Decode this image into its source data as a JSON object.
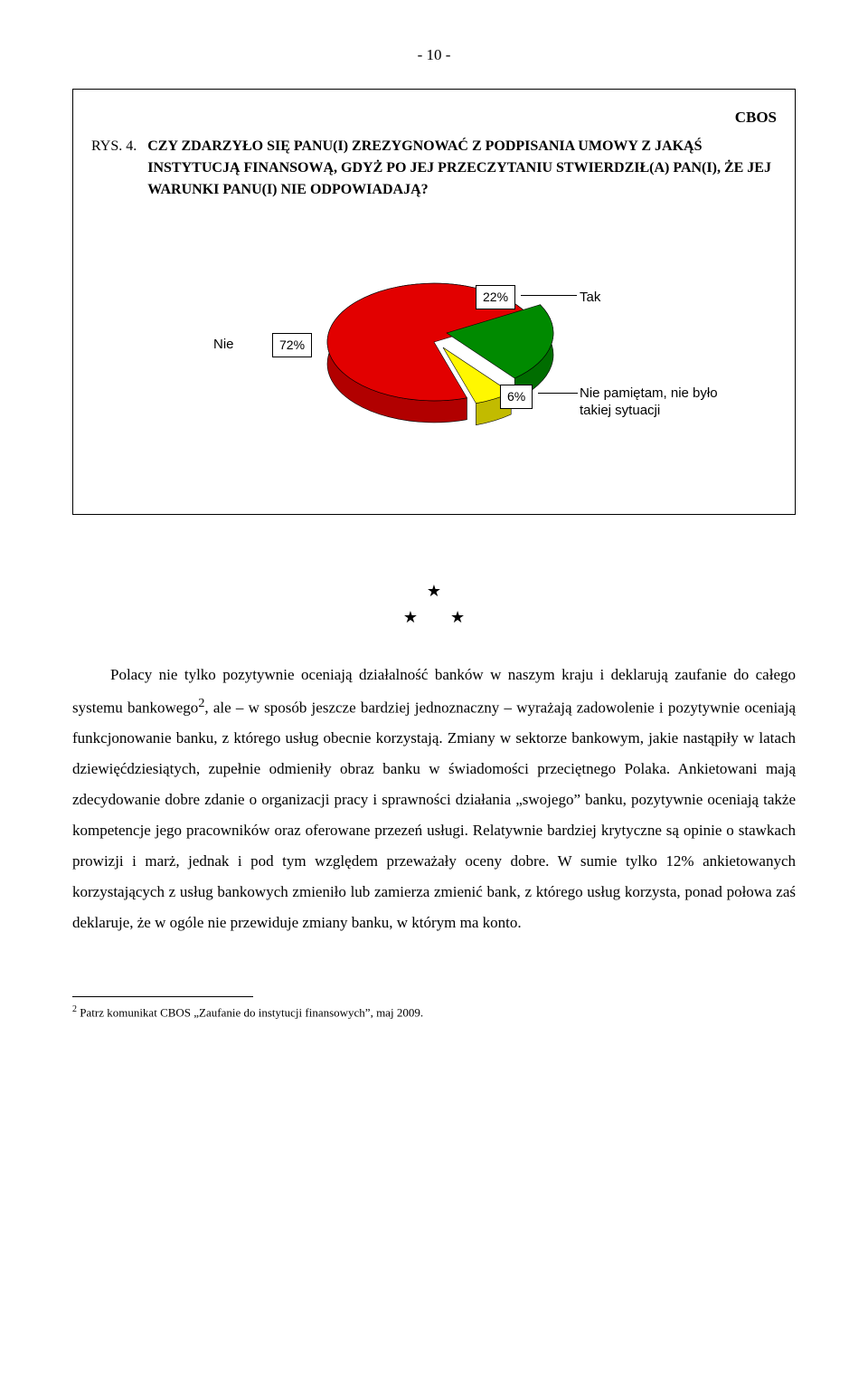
{
  "page_number": "- 10 -",
  "frame": {
    "cbos": "CBOS",
    "rys_label": "RYS. 4.",
    "rys_question": "CZY ZDARZYŁO SIĘ PANU(I) ZREZYGNOWAĆ Z PODPISANIA UMOWY Z JAKĄŚ INSTYTUCJĄ FINANSOWĄ, GDYŻ PO JEJ PRZECZYTANIU STWIERDZIŁ(A) PAN(I), ŻE JEJ WARUNKI PANU(I) NIE ODPOWIADAJĄ?"
  },
  "pie_chart": {
    "type": "pie",
    "slices": [
      {
        "label": "Nie",
        "value": 72,
        "pct_text": "72%",
        "color": "#e20000",
        "side_color": "#b10000"
      },
      {
        "label": "Tak",
        "value": 22,
        "pct_text": "22%",
        "color": "#008a00",
        "side_color": "#006d00"
      },
      {
        "label": "Nie pamiętam, nie było takiej sytuacji",
        "value": 6,
        "pct_text": "6%",
        "color": "#fff700",
        "side_color": "#c2bb00"
      }
    ],
    "background_color": "#ffffff",
    "border_color": "#000000",
    "label_font_family": "Arial",
    "label_font_size": 15,
    "pct_box_bg": "#ffffff",
    "pct_box_border": "#000000",
    "radius": 118,
    "depth": 24
  },
  "stars": "★\n★        ★",
  "paragraph_before_sup": "Polacy nie tylko pozytywnie oceniają działalność banków w naszym kraju i deklarują zaufanie do całego systemu bankowego",
  "sup_marker": "2",
  "paragraph_after_sup": ", ale – w sposób jeszcze bardziej jednoznaczny – wyrażają zadowolenie i pozytywnie oceniają funkcjonowanie banku, z którego usług obecnie korzystają. Zmiany w sektorze bankowym, jakie nastąpiły w latach dziewięćdziesiątych, zupełnie odmieniły obraz banku w świadomości przeciętnego Polaka. Ankietowani mają zdecydowanie dobre zdanie o organizacji pracy i sprawności działania „swojego” banku, pozytywnie oceniają także kompetencje jego pracowników oraz oferowane przezeń usługi. Relatywnie bardziej krytyczne są opinie o stawkach prowizji i marż, jednak i pod tym względem przeważały oceny dobre. W sumie tylko 12% ankietowanych korzystających z usług bankowych zmieniło lub zamierza zmienić bank, z którego usług korzysta, ponad połowa zaś deklaruje, że w ogóle nie przewiduje zmiany banku, w którym ma konto.",
  "footnote_marker": "2",
  "footnote_text": " Patrz komunikat CBOS „Zaufanie do instytucji finansowych”, maj 2009."
}
